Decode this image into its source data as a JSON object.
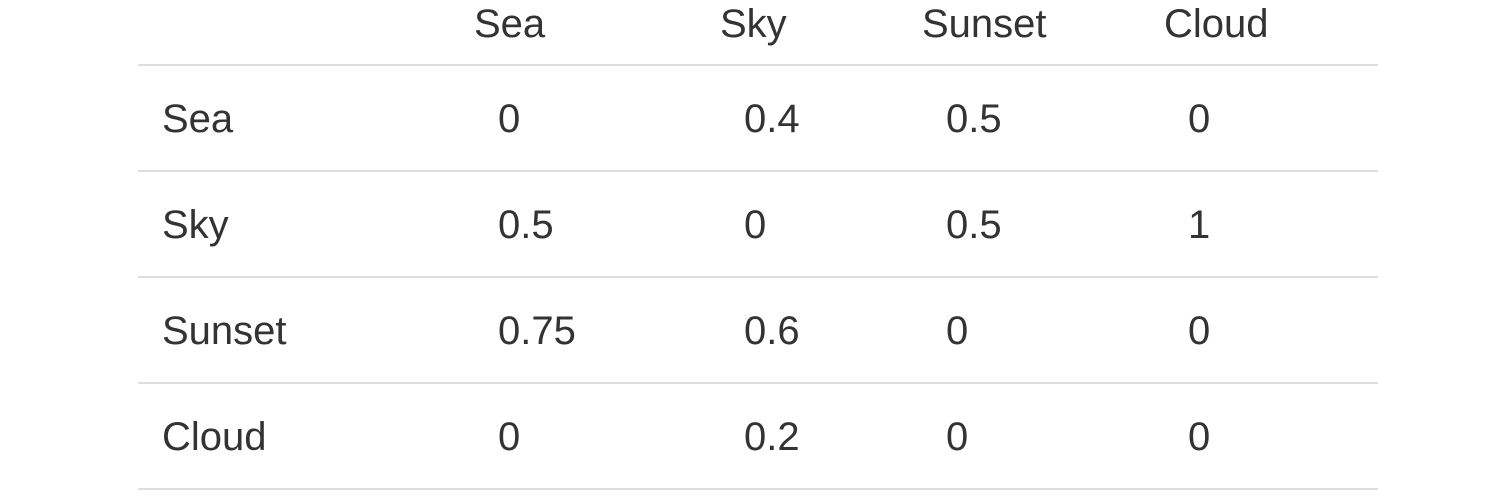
{
  "matrix": {
    "column_headers": [
      "Sea",
      "Sky",
      "Sunset",
      "Cloud"
    ],
    "rows": [
      {
        "label": "Sea",
        "values": [
          "0",
          "0.4",
          "0.5",
          "0"
        ]
      },
      {
        "label": "Sky",
        "values": [
          "0.5",
          "0",
          "0.5",
          "1"
        ]
      },
      {
        "label": "Sunset",
        "values": [
          "0.75",
          "0.6",
          "0",
          "0"
        ]
      },
      {
        "label": "Cloud",
        "values": [
          "0",
          "0.2",
          "0",
          "0"
        ]
      }
    ]
  },
  "colors": {
    "text": "#333333",
    "rule": "#dddddd",
    "background": "#ffffff"
  }
}
